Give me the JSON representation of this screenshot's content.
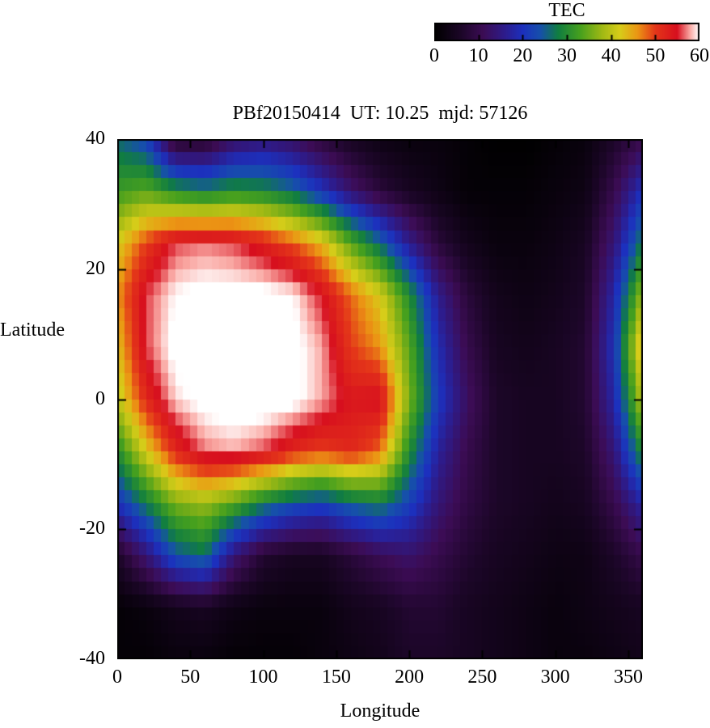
{
  "figure": {
    "background": "#ffffff"
  },
  "chart_data": {
    "type": "heatmap",
    "title": "PBf20150414  UT: 10.25  mjd: 57126",
    "xlabel": "Longitude",
    "ylabel": "Latitude",
    "x_range": [
      0,
      360
    ],
    "y_range": [
      -40,
      40
    ],
    "x_ticks": [
      0,
      50,
      100,
      150,
      200,
      250,
      300,
      350
    ],
    "y_ticks": [
      40,
      20,
      0,
      -20,
      -40
    ],
    "cell_size_deg": {
      "lon": 5,
      "lat": 2
    },
    "colorbar": {
      "label": "TEC",
      "min": 0,
      "max": 60,
      "ticks": [
        0,
        10,
        20,
        30,
        40,
        50,
        60
      ],
      "stops": [
        [
          0,
          "#000000"
        ],
        [
          6,
          "#1c0628"
        ],
        [
          11,
          "#3c0c55"
        ],
        [
          16,
          "#2d1c8c"
        ],
        [
          20,
          "#1c30be"
        ],
        [
          24,
          "#1650aa"
        ],
        [
          28,
          "#107d41"
        ],
        [
          33,
          "#46a01e"
        ],
        [
          38,
          "#a0b914"
        ],
        [
          42,
          "#d7cd19"
        ],
        [
          46,
          "#eb9614"
        ],
        [
          50,
          "#e43719"
        ],
        [
          55,
          "#d70f1e"
        ],
        [
          58,
          "#faaaa5"
        ],
        [
          60,
          "#ffffff"
        ]
      ]
    },
    "grid": {
      "comment_units": "TEC units sampled on a coarse lon/lat grid; rows ordered from lat +40 (top) to lat -40 (bottom)",
      "lons": [
        0,
        20,
        40,
        60,
        80,
        100,
        120,
        140,
        160,
        180,
        200,
        220,
        240,
        260,
        280,
        300,
        320,
        340,
        360
      ],
      "lats": [
        40,
        32,
        24,
        16,
        8,
        0,
        -8,
        -16,
        -24,
        -32,
        -40
      ],
      "tec_values": [
        [
          26,
          22,
          6,
          6,
          12,
          14,
          12,
          8,
          5,
          3,
          2,
          2,
          1,
          0,
          0,
          1,
          2,
          6,
          10
        ],
        [
          32,
          34,
          30,
          28,
          30,
          29,
          26,
          20,
          13,
          8,
          5,
          3,
          1,
          1,
          1,
          2,
          3,
          10,
          20
        ],
        [
          42,
          50,
          56,
          57,
          56,
          53,
          49,
          44,
          34,
          26,
          16,
          8,
          4,
          2,
          2,
          3,
          5,
          14,
          28
        ],
        [
          46,
          56,
          60,
          61,
          61,
          61,
          60,
          55,
          48,
          42,
          30,
          16,
          8,
          4,
          3,
          4,
          6,
          18,
          38
        ],
        [
          43,
          56,
          61,
          62,
          62,
          62,
          61,
          58,
          50,
          46,
          34,
          19,
          10,
          5,
          4,
          5,
          7,
          20,
          46
        ],
        [
          40,
          52,
          59,
          61,
          62,
          62,
          61,
          58,
          54,
          55,
          36,
          21,
          12,
          6,
          5,
          5,
          7,
          18,
          40
        ],
        [
          30,
          42,
          52,
          57,
          58,
          56,
          52,
          50,
          52,
          48,
          30,
          17,
          10,
          6,
          5,
          5,
          6,
          14,
          30
        ],
        [
          20,
          28,
          36,
          38,
          34,
          28,
          24,
          22,
          26,
          28,
          22,
          14,
          9,
          6,
          5,
          4,
          5,
          10,
          18
        ],
        [
          6,
          14,
          24,
          27,
          14,
          7,
          5,
          5,
          8,
          11,
          13,
          10,
          7,
          5,
          4,
          3,
          3,
          6,
          10
        ],
        [
          1,
          2,
          4,
          5,
          3,
          2,
          2,
          2,
          4,
          5,
          7,
          7,
          5,
          4,
          3,
          2,
          3,
          4,
          5
        ],
        [
          1,
          1,
          2,
          2,
          1,
          1,
          1,
          2,
          3,
          4,
          6,
          6,
          5,
          4,
          3,
          2,
          2,
          3,
          4
        ]
      ]
    }
  }
}
